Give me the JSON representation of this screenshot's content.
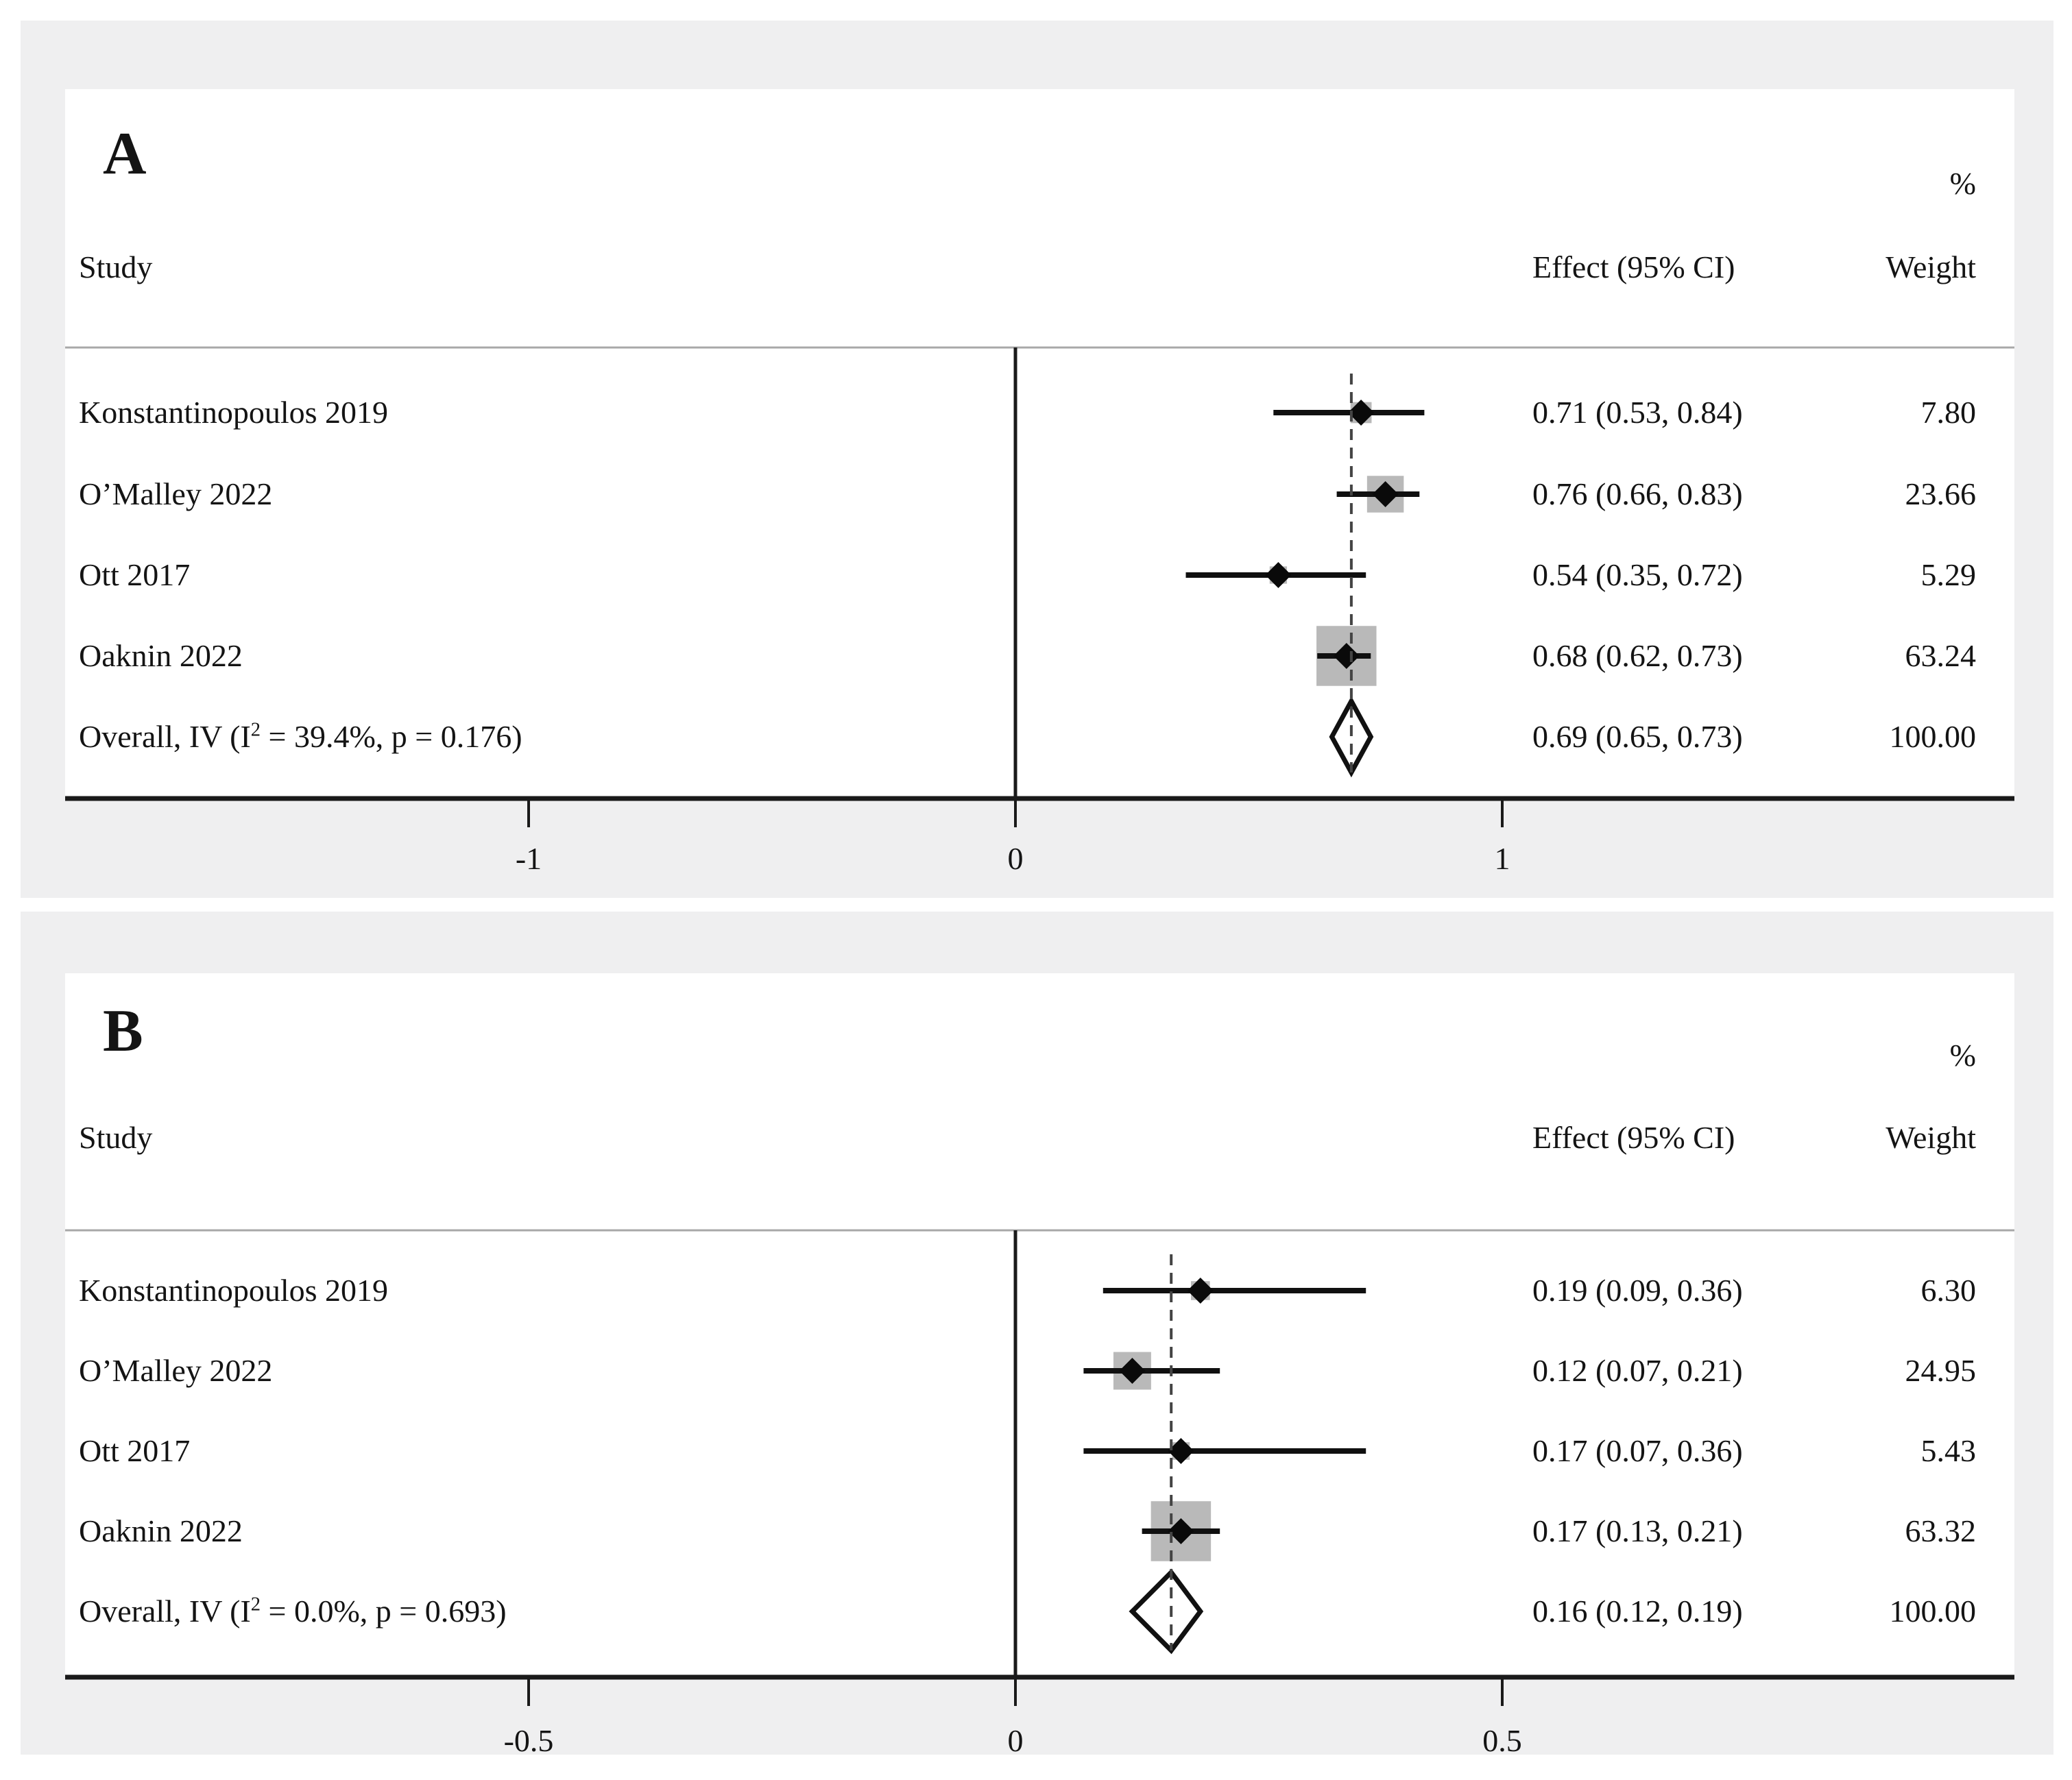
{
  "colors": {
    "page_background": "#ffffff",
    "block_background": "#efeff0",
    "panel_background": "#ffffff",
    "text": "#141414",
    "axis_line": "#1a1a1a",
    "header_rule": "#a8a8a8",
    "zero_line": "#1a1a1a",
    "dashed_line": "#444444",
    "ci_line": "#101010",
    "weight_square": "#b9b9b9",
    "point_marker": "#0a0a0a",
    "overall_diamond_stroke": "#111111",
    "overall_diamond_fill": "#ffffff"
  },
  "chart_data": [
    {
      "type": "forest",
      "panel_label": "A",
      "weight_pct_header": "%",
      "col_headers": {
        "study": "Study",
        "effect": "Effect (95% CI)",
        "weight": "Weight"
      },
      "x_axis": {
        "zero_line": 0,
        "ticks": [
          {
            "value": -1,
            "label": "-1"
          },
          {
            "value": 0,
            "label": "0"
          },
          {
            "value": 1,
            "label": "1"
          }
        ]
      },
      "overall_dashed_at": 0.69,
      "studies": [
        {
          "label": "Konstantinopoulos 2019",
          "effect": 0.71,
          "ci_low": 0.53,
          "ci_high": 0.84,
          "effect_text": "0.71 (0.53, 0.84)",
          "weight": 7.8,
          "weight_text": "7.80"
        },
        {
          "label": "O’Malley 2022",
          "effect": 0.76,
          "ci_low": 0.66,
          "ci_high": 0.83,
          "effect_text": "0.76 (0.66, 0.83)",
          "weight": 23.66,
          "weight_text": "23.66"
        },
        {
          "label": "Ott 2017",
          "effect": 0.54,
          "ci_low": 0.35,
          "ci_high": 0.72,
          "effect_text": "0.54 (0.35, 0.72)",
          "weight": 5.29,
          "weight_text": "5.29"
        },
        {
          "label": "Oaknin 2022",
          "effect": 0.68,
          "ci_low": 0.62,
          "ci_high": 0.73,
          "effect_text": "0.68 (0.62, 0.73)",
          "weight": 63.24,
          "weight_text": "63.24"
        }
      ],
      "overall": {
        "label_pre": "Overall, IV (I",
        "label_sup": "2",
        "label_post": " = 39.4%, p = 0.176)",
        "effect": 0.69,
        "ci_low": 0.65,
        "ci_high": 0.73,
        "effect_text": "0.69 (0.65, 0.73)",
        "weight_text": "100.00"
      }
    },
    {
      "type": "forest",
      "panel_label": "B",
      "weight_pct_header": "%",
      "col_headers": {
        "study": "Study",
        "effect": "Effect (95% CI)",
        "weight": "Weight"
      },
      "x_axis": {
        "zero_line": 0,
        "ticks": [
          {
            "value": -0.5,
            "label": "-0.5"
          },
          {
            "value": 0,
            "label": "0"
          },
          {
            "value": 0.5,
            "label": "0.5"
          }
        ]
      },
      "overall_dashed_at": 0.16,
      "studies": [
        {
          "label": "Konstantinopoulos 2019",
          "effect": 0.19,
          "ci_low": 0.09,
          "ci_high": 0.36,
          "effect_text": "0.19 (0.09, 0.36)",
          "weight": 6.3,
          "weight_text": "6.30"
        },
        {
          "label": "O’Malley 2022",
          "effect": 0.12,
          "ci_low": 0.07,
          "ci_high": 0.21,
          "effect_text": "0.12 (0.07, 0.21)",
          "weight": 24.95,
          "weight_text": "24.95"
        },
        {
          "label": "Ott 2017",
          "effect": 0.17,
          "ci_low": 0.07,
          "ci_high": 0.36,
          "effect_text": "0.17 (0.07, 0.36)",
          "weight": 5.43,
          "weight_text": "5.43"
        },
        {
          "label": "Oaknin 2022",
          "effect": 0.17,
          "ci_low": 0.13,
          "ci_high": 0.21,
          "effect_text": "0.17 (0.13, 0.21)",
          "weight": 63.32,
          "weight_text": "63.32"
        }
      ],
      "overall": {
        "label_pre": "Overall, IV (I",
        "label_sup": "2",
        "label_post": " = 0.0%, p = 0.693)",
        "effect": 0.16,
        "ci_low": 0.12,
        "ci_high": 0.19,
        "effect_text": "0.16 (0.12, 0.19)",
        "weight_text": "100.00"
      }
    }
  ]
}
